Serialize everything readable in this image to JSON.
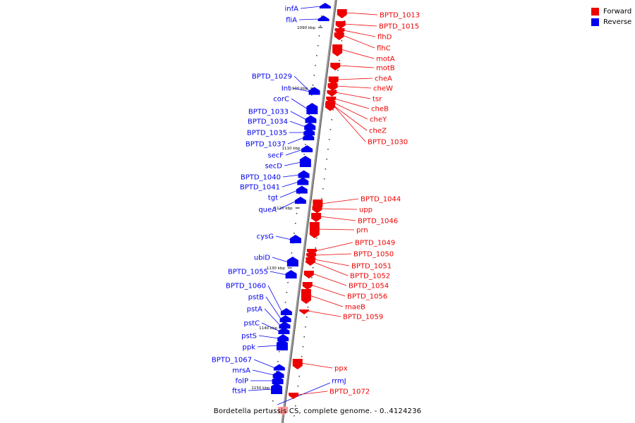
{
  "colors": {
    "forward": "#ee0000",
    "reverse": "#0000ee",
    "forward_light": "#ff9a9a",
    "backbone": "#888888"
  },
  "legend": {
    "forward_label": "Forward",
    "reverse_label": "Reverse"
  },
  "caption": "Bordetella pertussis CS, complete genome. - 0..4124236",
  "kbp_ticks": [
    "1090 kbp",
    "1100 kbp",
    "1110 kbp",
    "1120 kbp",
    "1130 kbp",
    "1140 kbp",
    "1150 kbp"
  ],
  "reverse_genes": [
    "infA",
    "fliA",
    "BPTD_1029",
    "Int",
    "corC",
    "BPTD_1033",
    "BPTD_1034",
    "BPTD_1035",
    "BPTD_1037",
    "secF",
    "secD",
    "BPTD_1040",
    "BPTD_1041",
    "tgt",
    "queA",
    "cysG",
    "ubiD",
    "BPTD_1055",
    "BPTD_1060",
    "pstB",
    "pstA",
    "pstC",
    "pstS",
    "ppk",
    "BPTD_1067",
    "mrsA",
    "folP",
    "ftsH",
    "rrmJ"
  ],
  "forward_genes": [
    "BPTD_1013",
    "BPTD_1015",
    "flhD",
    "flhC",
    "motA",
    "motB",
    "cheA",
    "cheW",
    "tsr",
    "cheB",
    "cheY",
    "cheZ",
    "BPTD_1030",
    "BPTD_1044",
    "upp",
    "BPTD_1046",
    "prn",
    "BPTD_1049",
    "BPTD_1050",
    "BPTD_1051",
    "BPTD_1052",
    "BPTD_1054",
    "BPTD_1056",
    "maeB",
    "BPTD_1059",
    "ppx",
    "BPTD_1072"
  ]
}
